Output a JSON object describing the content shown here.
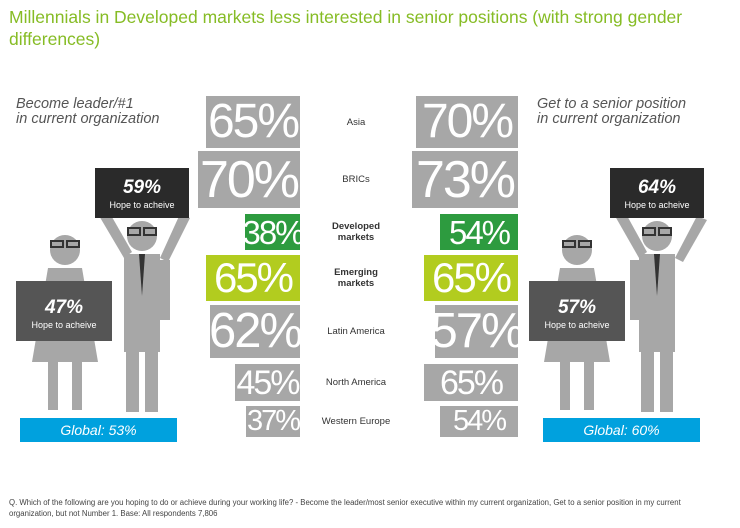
{
  "title": "Millennials in Developed markets less interested in senior positions (with strong gender differences)",
  "left_heading": [
    "Become leader/#1",
    "in current organization"
  ],
  "right_heading": [
    "Get to a senior position",
    "in current organization"
  ],
  "left_signs": {
    "male": {
      "pct": "59%",
      "caption": "Hope to acheive"
    },
    "female": {
      "pct": "47%",
      "caption": "Hope to acheive"
    }
  },
  "right_signs": {
    "male": {
      "pct": "64%",
      "caption": "Hope to acheive"
    },
    "female": {
      "pct": "57%",
      "caption": "Hope to acheive"
    }
  },
  "left_global": "Global: 53%",
  "right_global": "Global: 60%",
  "colors": {
    "gray": "#a7a7a7",
    "dark_green": "#2d9b3f",
    "lime": "#b2cc1f",
    "title_green": "#86bc25",
    "global_blue": "#00a1de",
    "sign_dark": "#2a2a2a",
    "sign_mid": "#555555"
  },
  "chart_data": {
    "type": "table",
    "title": "Millennials in Developed markets less interested in senior positions (with strong gender differences)",
    "categories": [
      "Asia",
      "BRICs",
      "Developed markets",
      "Emerging markets",
      "Latin America",
      "North America",
      "Western Europe"
    ],
    "category_lines": [
      [
        "Asia"
      ],
      [
        "BRICs"
      ],
      [
        "Developed",
        "markets"
      ],
      [
        "Emerging",
        "markets"
      ],
      [
        "Latin America"
      ],
      [
        "North America"
      ],
      [
        "Western Europe"
      ]
    ],
    "highlight": [
      "none",
      "none",
      "dark",
      "lime",
      "none",
      "none",
      "none"
    ],
    "series": [
      {
        "name": "Become leader/#1 in current organization",
        "values": [
          65,
          70,
          38,
          65,
          62,
          45,
          37
        ],
        "labels": [
          "65%",
          "70%",
          "38%",
          "65%",
          "62%",
          "45%",
          "37%"
        ]
      },
      {
        "name": "Get to a senior position in current organization",
        "values": [
          70,
          73,
          54,
          65,
          57,
          65,
          54
        ],
        "labels": [
          "70%",
          "73%",
          "54%",
          "65%",
          "57%",
          "65%",
          "54%"
        ]
      }
    ],
    "global": {
      "Become leader/#1 in current organization": 53,
      "Get to a senior position in current organization": 60
    },
    "hope_to_achieve": {
      "Become leader/#1 in current organization": {
        "male": 59,
        "female": 47
      },
      "Get to a senior position in current organization": {
        "male": 64,
        "female": 57
      }
    }
  },
  "footnote": [
    "Q. Which of the following are you hoping to do or achieve during your working life? - Become the leader/most senior executive within my current organization, Get to a senior position in my current",
    "organization, but not Number 1. Base: All respondents 7,806"
  ]
}
